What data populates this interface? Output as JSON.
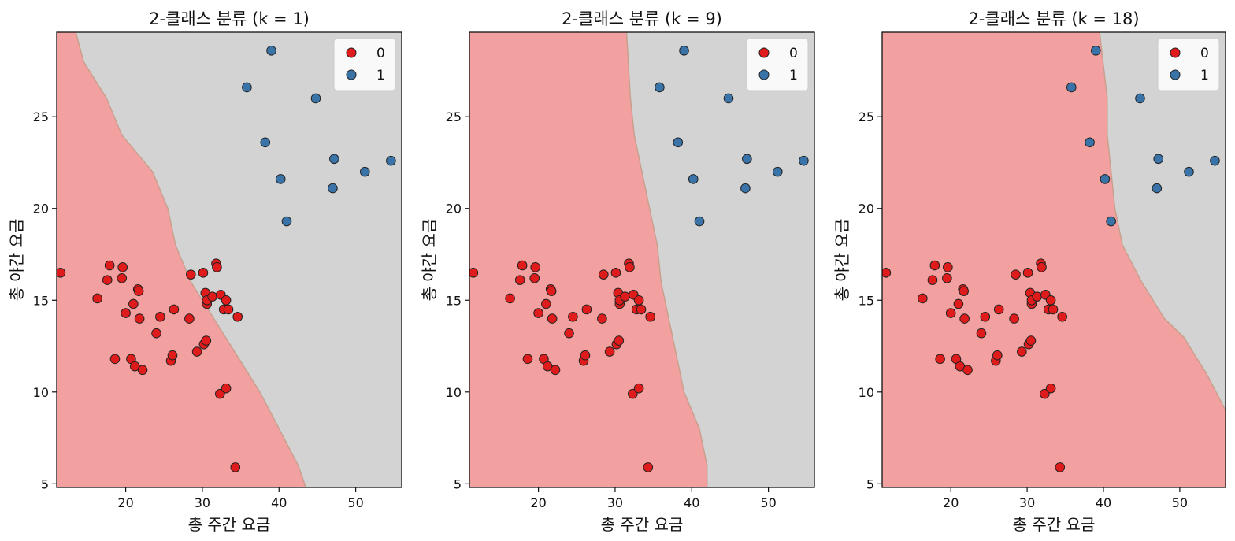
{
  "chart_data": [
    {
      "type": "scatter",
      "title": "2-클래스 분류 (k = 1)",
      "xlabel": "총 주간 요금",
      "ylabel": "총 야간 요금",
      "xlim": [
        11,
        56
      ],
      "ylim": [
        4.8,
        29.6
      ],
      "xticks": [
        20,
        30,
        40,
        50
      ],
      "yticks": [
        5,
        10,
        15,
        20,
        25
      ],
      "legend": {
        "placement": "top-right",
        "entries": [
          "0",
          "1"
        ]
      },
      "boundary": [
        [
          13.5,
          29.6
        ],
        [
          14.5,
          28.0
        ],
        [
          17.5,
          26.0
        ],
        [
          19.5,
          24.0
        ],
        [
          23.5,
          22.0
        ],
        [
          25.5,
          20.0
        ],
        [
          26.5,
          18.0
        ],
        [
          28.5,
          16.0
        ],
        [
          31.5,
          14.0
        ],
        [
          34.5,
          12.0
        ],
        [
          37.5,
          10.0
        ],
        [
          40.0,
          8.0
        ],
        [
          42.5,
          6.0
        ],
        [
          43.5,
          4.8
        ]
      ],
      "boundary_rule": "x_greater_is_1"
    },
    {
      "type": "scatter",
      "title": "2-클래스 분류 (k = 9)",
      "xlabel": "총 주간 요금",
      "ylabel": "총 야간 요금",
      "xlim": [
        11,
        56
      ],
      "ylim": [
        4.8,
        29.6
      ],
      "xticks": [
        20,
        30,
        40,
        50
      ],
      "yticks": [
        5,
        10,
        15,
        20,
        25
      ],
      "legend": {
        "placement": "top-right",
        "entries": [
          "0",
          "1"
        ]
      },
      "boundary": [
        [
          31.5,
          29.6
        ],
        [
          32.0,
          26.0
        ],
        [
          32.5,
          24.0
        ],
        [
          33.5,
          22.0
        ],
        [
          34.5,
          20.0
        ],
        [
          35.5,
          18.0
        ],
        [
          36.0,
          16.0
        ],
        [
          37.0,
          14.0
        ],
        [
          38.0,
          12.0
        ],
        [
          39.0,
          10.0
        ],
        [
          41.0,
          8.0
        ],
        [
          42.0,
          6.0
        ],
        [
          42.0,
          4.8
        ]
      ],
      "boundary_rule": "x_greater_is_1"
    },
    {
      "type": "scatter",
      "title": "2-클래스 분류 (k = 18)",
      "xlabel": "총 주간 요금",
      "ylabel": "총 야간 요금",
      "xlim": [
        11,
        56
      ],
      "ylim": [
        4.8,
        29.6
      ],
      "xticks": [
        20,
        30,
        40,
        50
      ],
      "yticks": [
        5,
        10,
        15,
        20,
        25
      ],
      "legend": {
        "placement": "top-right",
        "entries": [
          "0",
          "1"
        ]
      },
      "boundary": [
        [
          39.5,
          29.6
        ],
        [
          40.5,
          26.0
        ],
        [
          40.5,
          24.0
        ],
        [
          41.0,
          22.0
        ],
        [
          41.5,
          20.0
        ],
        [
          42.5,
          18.0
        ],
        [
          45.0,
          16.0
        ],
        [
          48.0,
          14.0
        ],
        [
          50.5,
          13.0
        ],
        [
          53.5,
          11.0
        ],
        [
          56.0,
          9.0
        ]
      ],
      "boundary_rule": "x_greater_is_1_and_y_above_band"
    }
  ],
  "points": {
    "class0": [
      [
        11.5,
        16.5
      ],
      [
        16.3,
        15.1
      ],
      [
        17.6,
        16.1
      ],
      [
        17.9,
        16.9
      ],
      [
        18.6,
        11.8
      ],
      [
        19.5,
        16.2
      ],
      [
        19.6,
        16.8
      ],
      [
        20.0,
        14.3
      ],
      [
        20.7,
        11.8
      ],
      [
        21.0,
        14.8
      ],
      [
        21.2,
        11.4
      ],
      [
        21.6,
        15.6
      ],
      [
        21.7,
        15.5
      ],
      [
        21.8,
        14.0
      ],
      [
        22.2,
        11.2
      ],
      [
        24.0,
        13.2
      ],
      [
        24.5,
        14.1
      ],
      [
        25.9,
        11.7
      ],
      [
        26.1,
        12.0
      ],
      [
        26.3,
        14.5
      ],
      [
        28.3,
        14.0
      ],
      [
        28.5,
        16.4
      ],
      [
        29.3,
        12.2
      ],
      [
        30.1,
        16.5
      ],
      [
        30.2,
        12.6
      ],
      [
        30.4,
        15.4
      ],
      [
        30.5,
        12.8
      ],
      [
        30.6,
        14.8
      ],
      [
        30.6,
        15.0
      ],
      [
        31.3,
        15.2
      ],
      [
        31.8,
        17.0
      ],
      [
        31.9,
        16.8
      ],
      [
        32.3,
        9.9
      ],
      [
        32.4,
        15.3
      ],
      [
        32.8,
        14.5
      ],
      [
        33.1,
        10.2
      ],
      [
        33.1,
        15.0
      ],
      [
        33.4,
        14.5
      ],
      [
        34.6,
        14.1
      ],
      [
        34.3,
        5.9
      ]
    ],
    "class1": [
      [
        35.8,
        26.6
      ],
      [
        38.2,
        23.6
      ],
      [
        39.0,
        28.6
      ],
      [
        40.2,
        21.6
      ],
      [
        41.0,
        19.3
      ],
      [
        44.8,
        26.0
      ],
      [
        47.0,
        21.1
      ],
      [
        47.2,
        22.7
      ],
      [
        51.2,
        22.0
      ],
      [
        54.6,
        22.6
      ]
    ]
  },
  "colors": {
    "region0": "#f2a0a0",
    "region1": "#d3d3d3",
    "point0": "#e01b1b",
    "point1": "#3a73a8",
    "edge": "#222222",
    "axis": "#111111"
  }
}
